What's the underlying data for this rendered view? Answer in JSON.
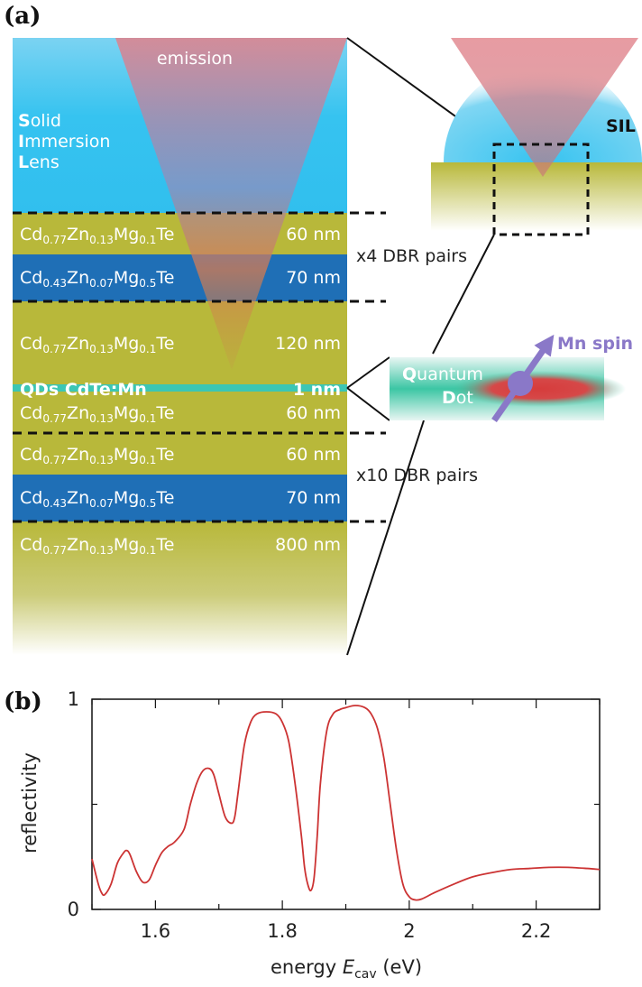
{
  "panel_a": {
    "label": "(a)",
    "emission_label": "emission",
    "lens_label": {
      "first": [
        "S",
        "I",
        "L"
      ],
      "rest": [
        "olid",
        "mmersion",
        "ens"
      ]
    },
    "sil_label": "SIL",
    "layers": [
      {
        "id": "dbr-top-1",
        "base": "CdZnMgTe",
        "composition": [
          "0.77",
          "0.13",
          "0.1"
        ],
        "thickness": "60 nm",
        "color": "#b8b83a"
      },
      {
        "id": "dbr-top-2",
        "base": "CdZnMgTe",
        "composition": [
          "0.43",
          "0.07",
          "0.5"
        ],
        "thickness": "70 nm",
        "color": "#1f6fb6"
      },
      {
        "id": "spacer-top",
        "base": "CdZnMgTe",
        "composition": [
          "0.77",
          "0.13",
          "0.1"
        ],
        "thickness": "120 nm",
        "color": "#b8b83a"
      },
      {
        "id": "qd",
        "label": "QDs CdTe:Mn",
        "thickness": "1 nm",
        "color": "#3cc6b4"
      },
      {
        "id": "spacer-bottom",
        "base": "CdZnMgTe",
        "composition": [
          "0.77",
          "0.13",
          "0.1"
        ],
        "thickness": "60 nm",
        "color": "#b8b83a"
      },
      {
        "id": "dbr-bottom-1",
        "base": "CdZnMgTe",
        "composition": [
          "0.77",
          "0.13",
          "0.1"
        ],
        "thickness": "60 nm",
        "color": "#b8b83a"
      },
      {
        "id": "dbr-bottom-2",
        "base": "CdZnMgTe",
        "composition": [
          "0.43",
          "0.07",
          "0.5"
        ],
        "thickness": "70 nm",
        "color": "#1f6fb6"
      },
      {
        "id": "buffer",
        "base": "CdZnMgTe",
        "composition": [
          "0.77",
          "0.13",
          "0.1"
        ],
        "thickness": "800 nm",
        "color": "#b8b83a"
      }
    ],
    "dbr_top_label": "x4 DBR pairs",
    "dbr_bottom_label": "x10 DBR pairs",
    "qd_inset": {
      "first": [
        "Q",
        "D"
      ],
      "rest": [
        "uantum",
        "ot"
      ],
      "spin_label": "Mn spin"
    },
    "colors": {
      "lens": "#36c3f0",
      "emission": "#d9848a",
      "spin": "#8a78c8",
      "dot": "#d63c3c"
    }
  },
  "chart_data": {
    "type": "line",
    "panel_label": "(b)",
    "xlabel": "energy",
    "xlabel_symbol": "E",
    "xlabel_subscript": "cav",
    "xlabel_unit": "(eV)",
    "ylabel": "reflectivity",
    "xlim": [
      1.5,
      2.3
    ],
    "ylim": [
      0,
      1
    ],
    "xticks": [
      1.6,
      1.8,
      2.0,
      2.2
    ],
    "xtick_labels": [
      "1.6",
      "1.8",
      "2",
      "2.2"
    ],
    "yticks": [
      0,
      1
    ],
    "ytick_labels": [
      "0",
      "1"
    ],
    "line_color": "#cc3333",
    "series": [
      {
        "x": [
          1.5,
          1.51,
          1.515,
          1.52,
          1.53,
          1.54,
          1.55,
          1.555,
          1.56,
          1.57,
          1.58,
          1.59,
          1.6,
          1.61,
          1.62,
          1.63,
          1.645,
          1.655,
          1.665,
          1.675,
          1.685,
          1.692,
          1.7,
          1.71,
          1.72,
          1.725,
          1.73,
          1.74,
          1.75,
          1.76,
          1.775,
          1.79,
          1.8,
          1.81,
          1.82,
          1.83,
          1.835,
          1.84,
          1.845,
          1.85,
          1.855,
          1.86,
          1.87,
          1.88,
          1.89,
          1.9,
          1.915,
          1.93,
          1.94,
          1.95,
          1.96,
          1.97,
          1.98,
          1.99,
          2.0,
          2.01,
          2.02,
          2.04,
          2.07,
          2.1,
          2.13,
          2.16,
          2.19,
          2.22,
          2.25,
          2.28,
          2.3
        ],
        "y": [
          0.24,
          0.12,
          0.08,
          0.07,
          0.12,
          0.22,
          0.27,
          0.28,
          0.26,
          0.18,
          0.13,
          0.14,
          0.21,
          0.27,
          0.3,
          0.32,
          0.38,
          0.5,
          0.6,
          0.66,
          0.67,
          0.64,
          0.55,
          0.44,
          0.41,
          0.44,
          0.55,
          0.78,
          0.89,
          0.93,
          0.94,
          0.93,
          0.89,
          0.8,
          0.6,
          0.35,
          0.2,
          0.12,
          0.09,
          0.15,
          0.35,
          0.6,
          0.85,
          0.93,
          0.95,
          0.96,
          0.97,
          0.96,
          0.93,
          0.86,
          0.72,
          0.5,
          0.28,
          0.12,
          0.06,
          0.045,
          0.05,
          0.08,
          0.12,
          0.155,
          0.175,
          0.19,
          0.195,
          0.2,
          0.2,
          0.195,
          0.19
        ]
      }
    ]
  }
}
